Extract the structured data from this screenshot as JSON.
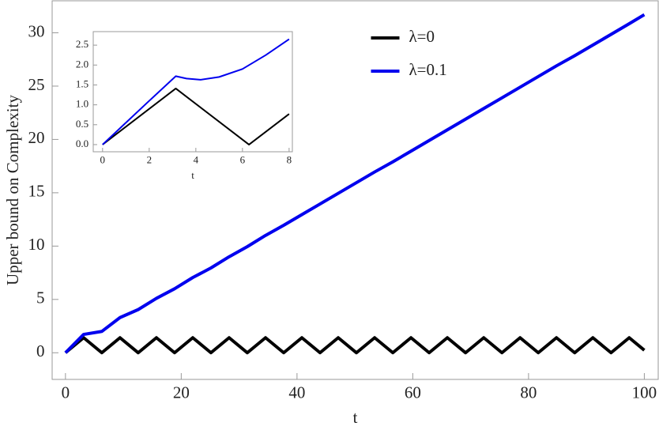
{
  "chart_data": [
    {
      "type": "line",
      "xlabel": "t",
      "ylabel": "Upper bound on Complexity",
      "xlim": [
        -2.3,
        102.4
      ],
      "ylim": [
        -2.5,
        33
      ],
      "xticks": [
        0,
        20,
        40,
        60,
        80,
        100
      ],
      "yticks": [
        0,
        5,
        10,
        15,
        20,
        25,
        30
      ],
      "legend": "upper center",
      "series": [
        {
          "name": "λ=0",
          "color": "#000000",
          "x": [
            0,
            3.14,
            6.28,
            9.42,
            12.57,
            15.71,
            18.85,
            21.99,
            25.13,
            28.27,
            31.42,
            34.56,
            37.7,
            40.84,
            43.98,
            47.12,
            50.27,
            53.41,
            56.55,
            59.69,
            62.83,
            65.97,
            69.12,
            72.26,
            75.4,
            78.54,
            81.68,
            84.82,
            87.96,
            91.11,
            94.25,
            97.39,
            100
          ],
          "values": [
            0,
            1.41,
            0,
            1.41,
            0,
            1.41,
            0,
            1.41,
            0,
            1.41,
            0,
            1.41,
            0,
            1.41,
            0,
            1.41,
            0,
            1.41,
            0,
            1.41,
            0,
            1.41,
            0,
            1.41,
            0,
            1.41,
            0,
            1.41,
            0,
            1.41,
            0,
            1.41,
            0.24
          ]
        },
        {
          "name": "λ=0.1",
          "color": "#0000ee",
          "x": [
            0,
            3.14,
            6.28,
            9.42,
            12.57,
            15.71,
            18.85,
            21.99,
            25.13,
            28.27,
            31.42,
            34.56,
            37.7,
            40.84,
            43.98,
            47.12,
            50.27,
            53.41,
            56.55,
            59.69,
            62.83,
            65.97,
            69.12,
            72.26,
            75.4,
            78.54,
            81.68,
            84.82,
            87.96,
            91.11,
            94.25,
            97.39,
            100
          ],
          "values": [
            0,
            1.72,
            2.0,
            3.3,
            4.05,
            5.1,
            6.0,
            7.05,
            7.95,
            9.0,
            9.95,
            11.0,
            11.95,
            12.95,
            13.95,
            14.95,
            15.95,
            16.95,
            17.9,
            18.9,
            19.9,
            20.9,
            21.9,
            22.9,
            23.9,
            24.9,
            25.9,
            26.9,
            27.85,
            28.85,
            29.85,
            30.85,
            31.7
          ]
        }
      ]
    },
    {
      "type": "line",
      "xlabel": "t",
      "xlim": [
        -0.4,
        8.14
      ],
      "ylim": [
        -0.18,
        2.84
      ],
      "xticks": [
        0,
        2,
        4,
        6,
        8
      ],
      "yticks": [
        {
          "value": 0,
          "label": "0.0"
        },
        0.5,
        {
          "value": 1,
          "label": "1.0"
        },
        1.5,
        {
          "value": 2,
          "label": "2.0"
        },
        2.5
      ],
      "series": [
        {
          "color": "#000000",
          "x": [
            0,
            3.14,
            6.28,
            8
          ],
          "values": [
            0,
            1.41,
            0,
            0.77
          ]
        },
        {
          "color": "#0000ee",
          "x": [
            0,
            1,
            2,
            3.14,
            3.6,
            4.2,
            5,
            6,
            7,
            8
          ],
          "values": [
            0,
            0.55,
            1.1,
            1.72,
            1.66,
            1.63,
            1.7,
            1.9,
            2.25,
            2.65
          ]
        }
      ]
    }
  ]
}
